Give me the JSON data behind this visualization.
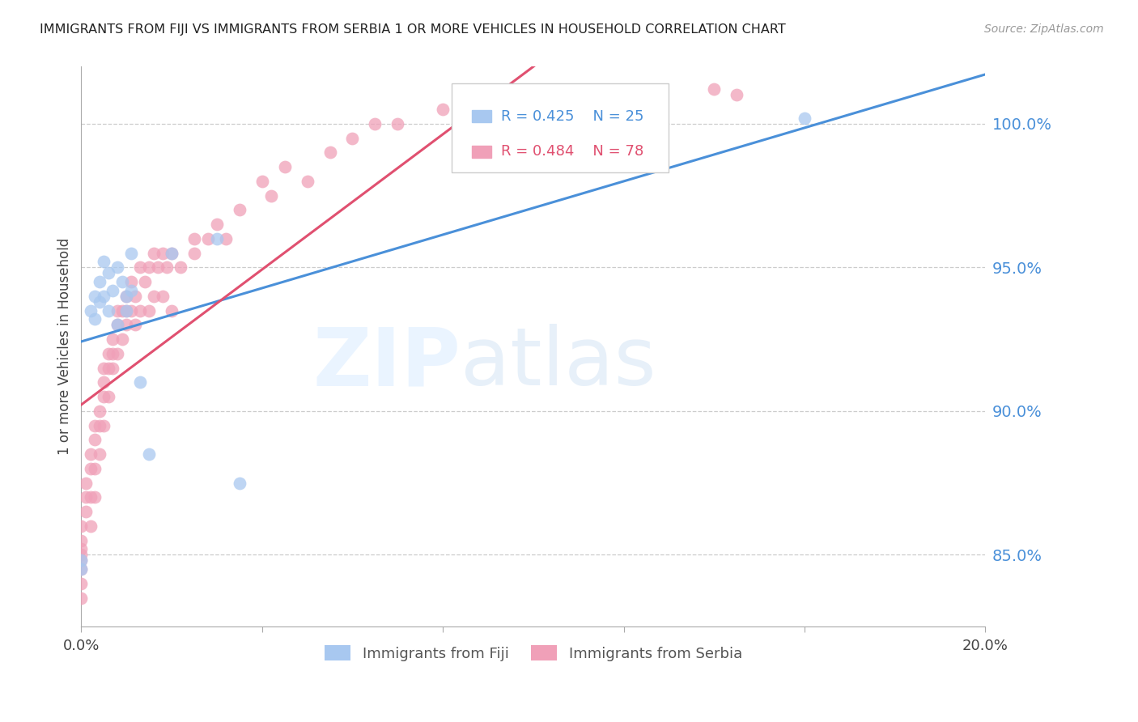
{
  "title": "IMMIGRANTS FROM FIJI VS IMMIGRANTS FROM SERBIA 1 OR MORE VEHICLES IN HOUSEHOLD CORRELATION CHART",
  "source": "Source: ZipAtlas.com",
  "ylabel": "1 or more Vehicles in Household",
  "yticks": [
    85.0,
    90.0,
    95.0,
    100.0
  ],
  "ytick_labels": [
    "85.0%",
    "90.0%",
    "95.0%",
    "100.0%"
  ],
  "xlim": [
    0.0,
    0.2
  ],
  "ylim": [
    82.5,
    102.0
  ],
  "fiji_color": "#A8C8F0",
  "serbia_color": "#F0A0B8",
  "fiji_line_color": "#4A90D9",
  "serbia_line_color": "#E05070",
  "fiji_R": 0.425,
  "fiji_N": 25,
  "serbia_R": 0.484,
  "serbia_N": 78,
  "fiji_scatter_x": [
    0.0,
    0.0,
    0.002,
    0.003,
    0.003,
    0.004,
    0.004,
    0.005,
    0.005,
    0.006,
    0.006,
    0.007,
    0.008,
    0.008,
    0.009,
    0.01,
    0.01,
    0.011,
    0.011,
    0.013,
    0.015,
    0.02,
    0.03,
    0.035,
    0.16
  ],
  "fiji_scatter_y": [
    84.5,
    84.8,
    93.5,
    93.2,
    94.0,
    93.8,
    94.5,
    94.0,
    95.2,
    93.5,
    94.8,
    94.2,
    93.0,
    95.0,
    94.5,
    93.5,
    94.0,
    94.2,
    95.5,
    91.0,
    88.5,
    95.5,
    96.0,
    87.5,
    100.2
  ],
  "serbia_scatter_x": [
    0.0,
    0.0,
    0.0,
    0.0,
    0.0,
    0.0,
    0.0,
    0.0,
    0.001,
    0.001,
    0.001,
    0.002,
    0.002,
    0.002,
    0.002,
    0.003,
    0.003,
    0.003,
    0.003,
    0.004,
    0.004,
    0.004,
    0.005,
    0.005,
    0.005,
    0.005,
    0.006,
    0.006,
    0.006,
    0.007,
    0.007,
    0.007,
    0.008,
    0.008,
    0.008,
    0.009,
    0.009,
    0.01,
    0.01,
    0.01,
    0.011,
    0.011,
    0.012,
    0.012,
    0.013,
    0.013,
    0.014,
    0.015,
    0.015,
    0.016,
    0.016,
    0.017,
    0.018,
    0.018,
    0.019,
    0.02,
    0.02,
    0.022,
    0.025,
    0.025,
    0.028,
    0.03,
    0.032,
    0.035,
    0.04,
    0.042,
    0.045,
    0.05,
    0.055,
    0.06,
    0.065,
    0.07,
    0.08,
    0.09,
    0.1,
    0.12,
    0.14,
    0.145
  ],
  "serbia_scatter_y": [
    83.5,
    84.0,
    84.5,
    85.0,
    85.5,
    84.8,
    85.2,
    86.0,
    86.5,
    87.0,
    87.5,
    86.0,
    87.0,
    88.0,
    88.5,
    87.0,
    88.0,
    89.0,
    89.5,
    88.5,
    89.5,
    90.0,
    89.5,
    90.5,
    91.0,
    91.5,
    90.5,
    91.5,
    92.0,
    91.5,
    92.0,
    92.5,
    92.0,
    93.0,
    93.5,
    92.5,
    93.5,
    93.0,
    93.5,
    94.0,
    93.5,
    94.5,
    93.0,
    94.0,
    93.5,
    95.0,
    94.5,
    93.5,
    95.0,
    94.0,
    95.5,
    95.0,
    94.0,
    95.5,
    95.0,
    93.5,
    95.5,
    95.0,
    96.0,
    95.5,
    96.0,
    96.5,
    96.0,
    97.0,
    98.0,
    97.5,
    98.5,
    98.0,
    99.0,
    99.5,
    100.0,
    100.0,
    100.5,
    100.5,
    101.0,
    101.0,
    101.2,
    101.0
  ]
}
